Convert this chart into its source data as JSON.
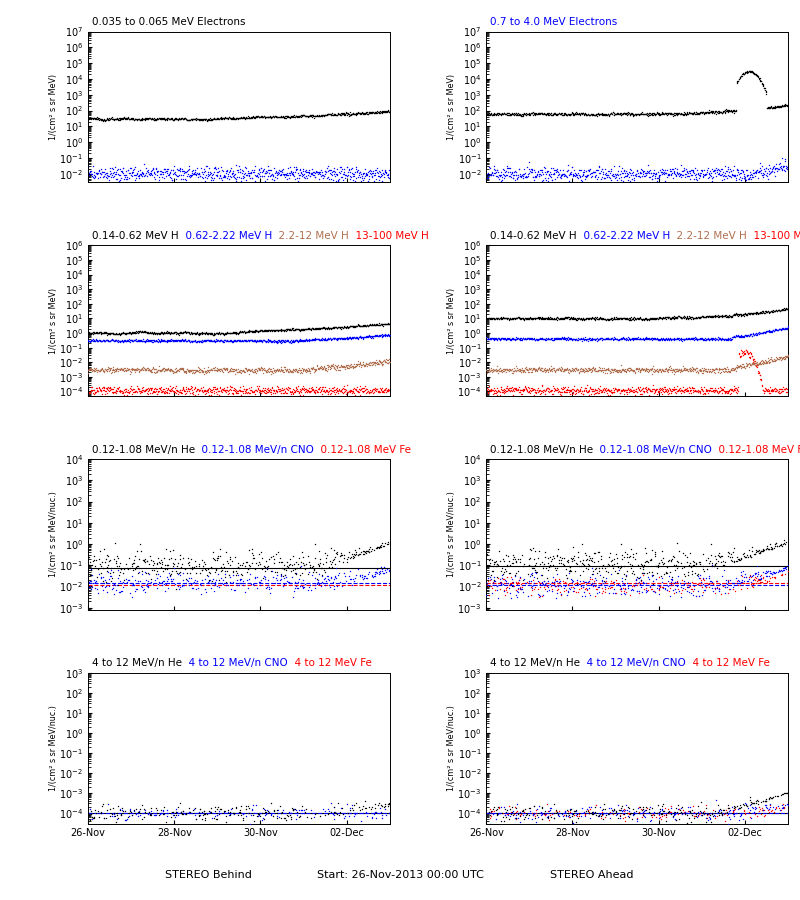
{
  "title_row1_left_black": "0.035 to 0.065 MeV Electrons",
  "title_row1_right_blue": "0.7 to 4.0 MeV Electrons",
  "title_row2_parts": [
    {
      "text": "0.14-0.62 MeV H",
      "color": "black"
    },
    {
      "text": "  0.62-2.22 MeV H",
      "color": "blue"
    },
    {
      "text": "  2.2-12 MeV H",
      "color": "#b07050"
    },
    {
      "text": "  13-100 MeV H",
      "color": "red"
    }
  ],
  "title_row3_parts": [
    {
      "text": "0.12-1.08 MeV/n He",
      "color": "black"
    },
    {
      "text": "  0.12-1.08 MeV/n CNO",
      "color": "blue"
    },
    {
      "text": "  0.12-1.08 MeV Fe",
      "color": "red"
    }
  ],
  "title_row4_parts": [
    {
      "text": "4 to 12 MeV/n He",
      "color": "black"
    },
    {
      "text": "  4 to 12 MeV/n CNO",
      "color": "blue"
    },
    {
      "text": "  4 to 12 MeV Fe",
      "color": "red"
    }
  ],
  "xlabel_left": "STEREO Behind",
  "xlabel_right": "STEREO Ahead",
  "xlabel_center": "Start: 26-Nov-2013 00:00 UTC",
  "ylabel_r1": "1/(cm² s sr MeV)",
  "ylabel_r2": "1/(cm² s sr MeV)",
  "ylabel_r3": "1/(cm² s sr MeV/nuc.)",
  "ylabel_r4": "1/(cm² s sr MeV/nuc.)",
  "xtick_labels": [
    "26-Nov",
    "28-Nov",
    "30-Nov",
    "02-Dec"
  ],
  "xtick_pos": [
    0,
    2,
    4,
    6
  ],
  "xmax": 7,
  "background": "#ffffff",
  "black": "#000000",
  "blue": "#0000ff",
  "tan": "#b07050",
  "red": "#ff0000"
}
